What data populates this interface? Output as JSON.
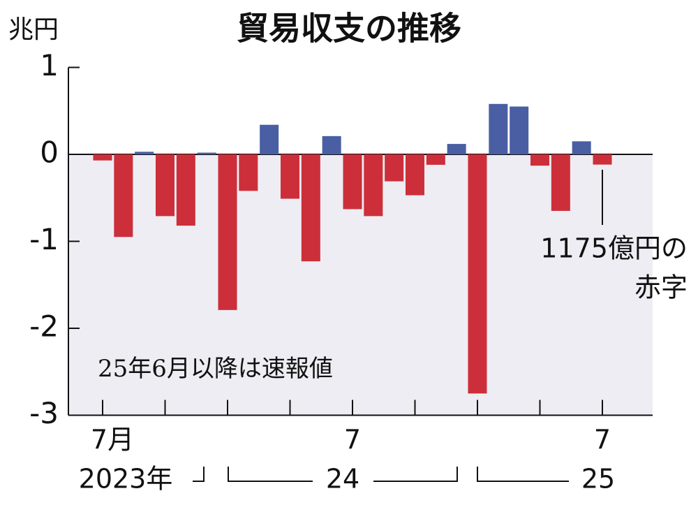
{
  "chart_data": {
    "type": "bar",
    "title": "貿易収支の推移",
    "y_unit": "兆円",
    "categories": [
      "7月",
      null,
      null,
      null,
      null,
      null,
      null,
      null,
      null,
      null,
      null,
      null,
      "7",
      null,
      null,
      null,
      null,
      null,
      null,
      null,
      null,
      null,
      null,
      null,
      "7"
    ],
    "year_labels": [
      "2023年",
      "24",
      "25"
    ],
    "values": [
      -0.07,
      -0.95,
      0.03,
      -0.71,
      -0.82,
      0.02,
      -1.79,
      -0.42,
      0.34,
      -0.51,
      -1.23,
      0.21,
      -0.63,
      -0.71,
      -0.31,
      -0.47,
      -0.12,
      0.12,
      -2.75,
      0.58,
      0.55,
      -0.13,
      -0.65,
      0.15,
      -0.1175
    ],
    "positive_color": "#4a5ea3",
    "negative_color": "#cc2f3a",
    "ylim": [
      -3,
      1
    ],
    "yticks": [
      1,
      0,
      -1,
      -2,
      -3
    ],
    "note": "25年6月以降は速報値",
    "annotation": [
      "1175億円の",
      "赤字"
    ]
  }
}
